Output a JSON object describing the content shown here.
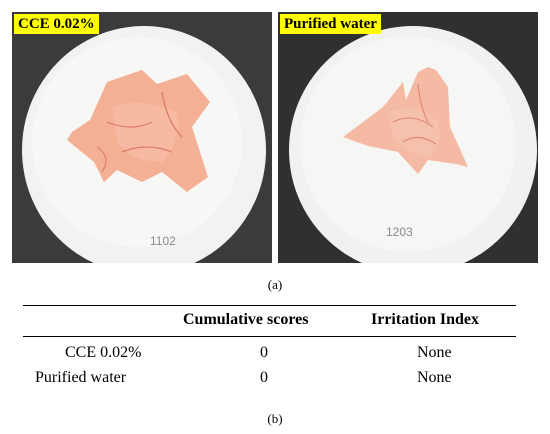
{
  "figure": {
    "panel_a": {
      "left_photo": {
        "label": "CCE 0.02%",
        "plate_number": "1102"
      },
      "right_photo": {
        "label": "Purified water",
        "plate_number": "1203"
      },
      "caption": "(a)"
    },
    "panel_b": {
      "caption": "(b)",
      "table": {
        "headers": [
          "",
          "Cumulative scores",
          "Irritation Index"
        ],
        "rows": [
          {
            "label": "CCE 0.02%",
            "score": "0",
            "index": "None"
          },
          {
            "label": "Purified water",
            "score": "0",
            "index": "None"
          }
        ]
      }
    }
  }
}
